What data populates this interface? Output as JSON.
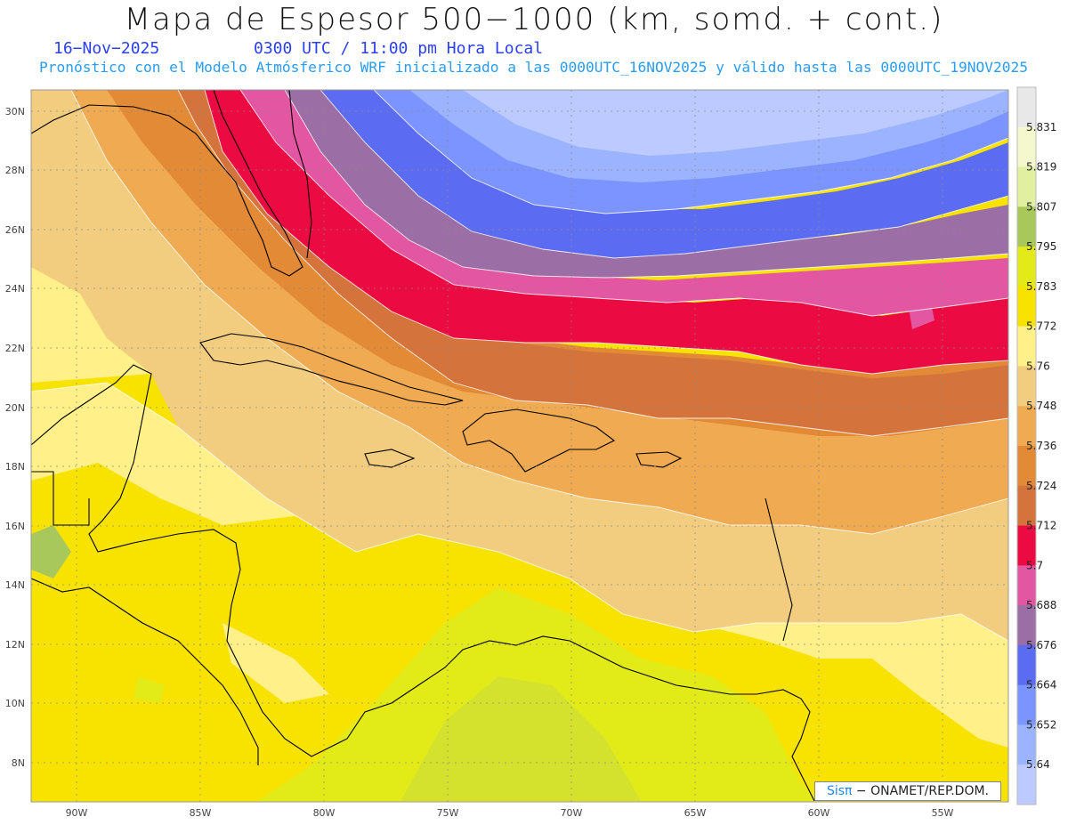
{
  "title": "Mapa de Espesor 500−1000 (km, somd. + cont.)",
  "date": "16−Nov−2025",
  "time": "0300 UTC / 11:00 pm Hora Local",
  "subtitle": "Pronóstico con el Modelo Atmósferico WRF inicializado a las 0000UTC_16NOV2025 y válido hasta las  0000UTC_19NOV2025",
  "lat_labels": [
    "30N",
    "28N",
    "26N",
    "24N",
    "22N",
    "20N",
    "18N",
    "16N",
    "14N",
    "12N",
    "10N",
    "8N"
  ],
  "lon_labels": [
    "90W",
    "85W",
    "80W",
    "75W",
    "70W",
    "65W",
    "60W",
    "55W"
  ],
  "colorbar": {
    "values": [
      "5.831",
      "5.819",
      "5.807",
      "5.795",
      "5.783",
      "5.772",
      "5.76",
      "5.748",
      "5.736",
      "5.724",
      "5.712",
      "5.7",
      "5.688",
      "5.676",
      "5.664",
      "5.652",
      "5.64"
    ],
    "colors": [
      "#e8e8e8",
      "#f4f8cc",
      "#e0f0a0",
      "#a8c85c",
      "#e2ea18",
      "#f8e300",
      "#fff08a",
      "#f2cd80",
      "#efaa52",
      "#e28a36",
      "#d4743c",
      "#ec0a42",
      "#e256a2",
      "#9c6ea6",
      "#5c6cf2",
      "#7c94ff",
      "#9cb4ff",
      "#bccaff"
    ]
  },
  "credit": {
    "brand": "Sisπ",
    "text": " − ONAMET/REP.DOM."
  }
}
